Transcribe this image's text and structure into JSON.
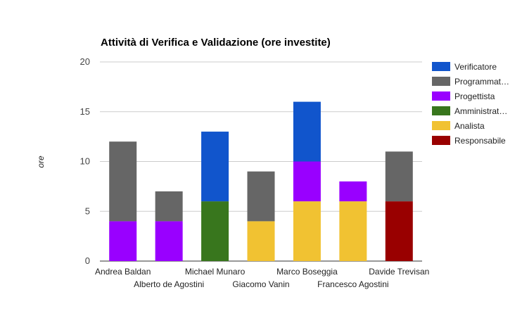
{
  "chart_data": {
    "type": "bar",
    "stacked": true,
    "title": "Attività di Verifica e Validazione (ore investite)",
    "xlabel": "",
    "ylabel": "ore",
    "ylim": [
      0,
      20
    ],
    "yticks": [
      0,
      5,
      10,
      15,
      20
    ],
    "grid": true,
    "legend_position": "right",
    "categories": [
      "Andrea Baldan",
      "Alberto de Agostini",
      "Michael Munaro",
      "Giacomo Vanin",
      "Marco Boseggia",
      "Francesco Agostini",
      "Davide Trevisan"
    ],
    "series": [
      {
        "name": "Responsabile",
        "label": "Responsabile",
        "color": "#990000",
        "values": [
          0,
          0,
          0,
          0,
          0,
          0,
          6
        ]
      },
      {
        "name": "Analista",
        "label": "Analista",
        "color": "#f1c232",
        "values": [
          0,
          0,
          0,
          4,
          6,
          6,
          0
        ]
      },
      {
        "name": "Amministratore",
        "label": "Amministrat…",
        "color": "#38761d",
        "values": [
          0,
          0,
          6,
          0,
          0,
          0,
          0
        ]
      },
      {
        "name": "Progettista",
        "label": "Progettista",
        "color": "#9900ff",
        "values": [
          4,
          4,
          0,
          0,
          4,
          2,
          0
        ]
      },
      {
        "name": "Programmatore",
        "label": "Programmat…",
        "color": "#666666",
        "values": [
          8,
          3,
          0,
          5,
          0,
          0,
          5
        ]
      },
      {
        "name": "Verificatore",
        "label": "Verificatore",
        "color": "#1155cc",
        "values": [
          0,
          0,
          7,
          0,
          6,
          0,
          0
        ]
      }
    ]
  }
}
